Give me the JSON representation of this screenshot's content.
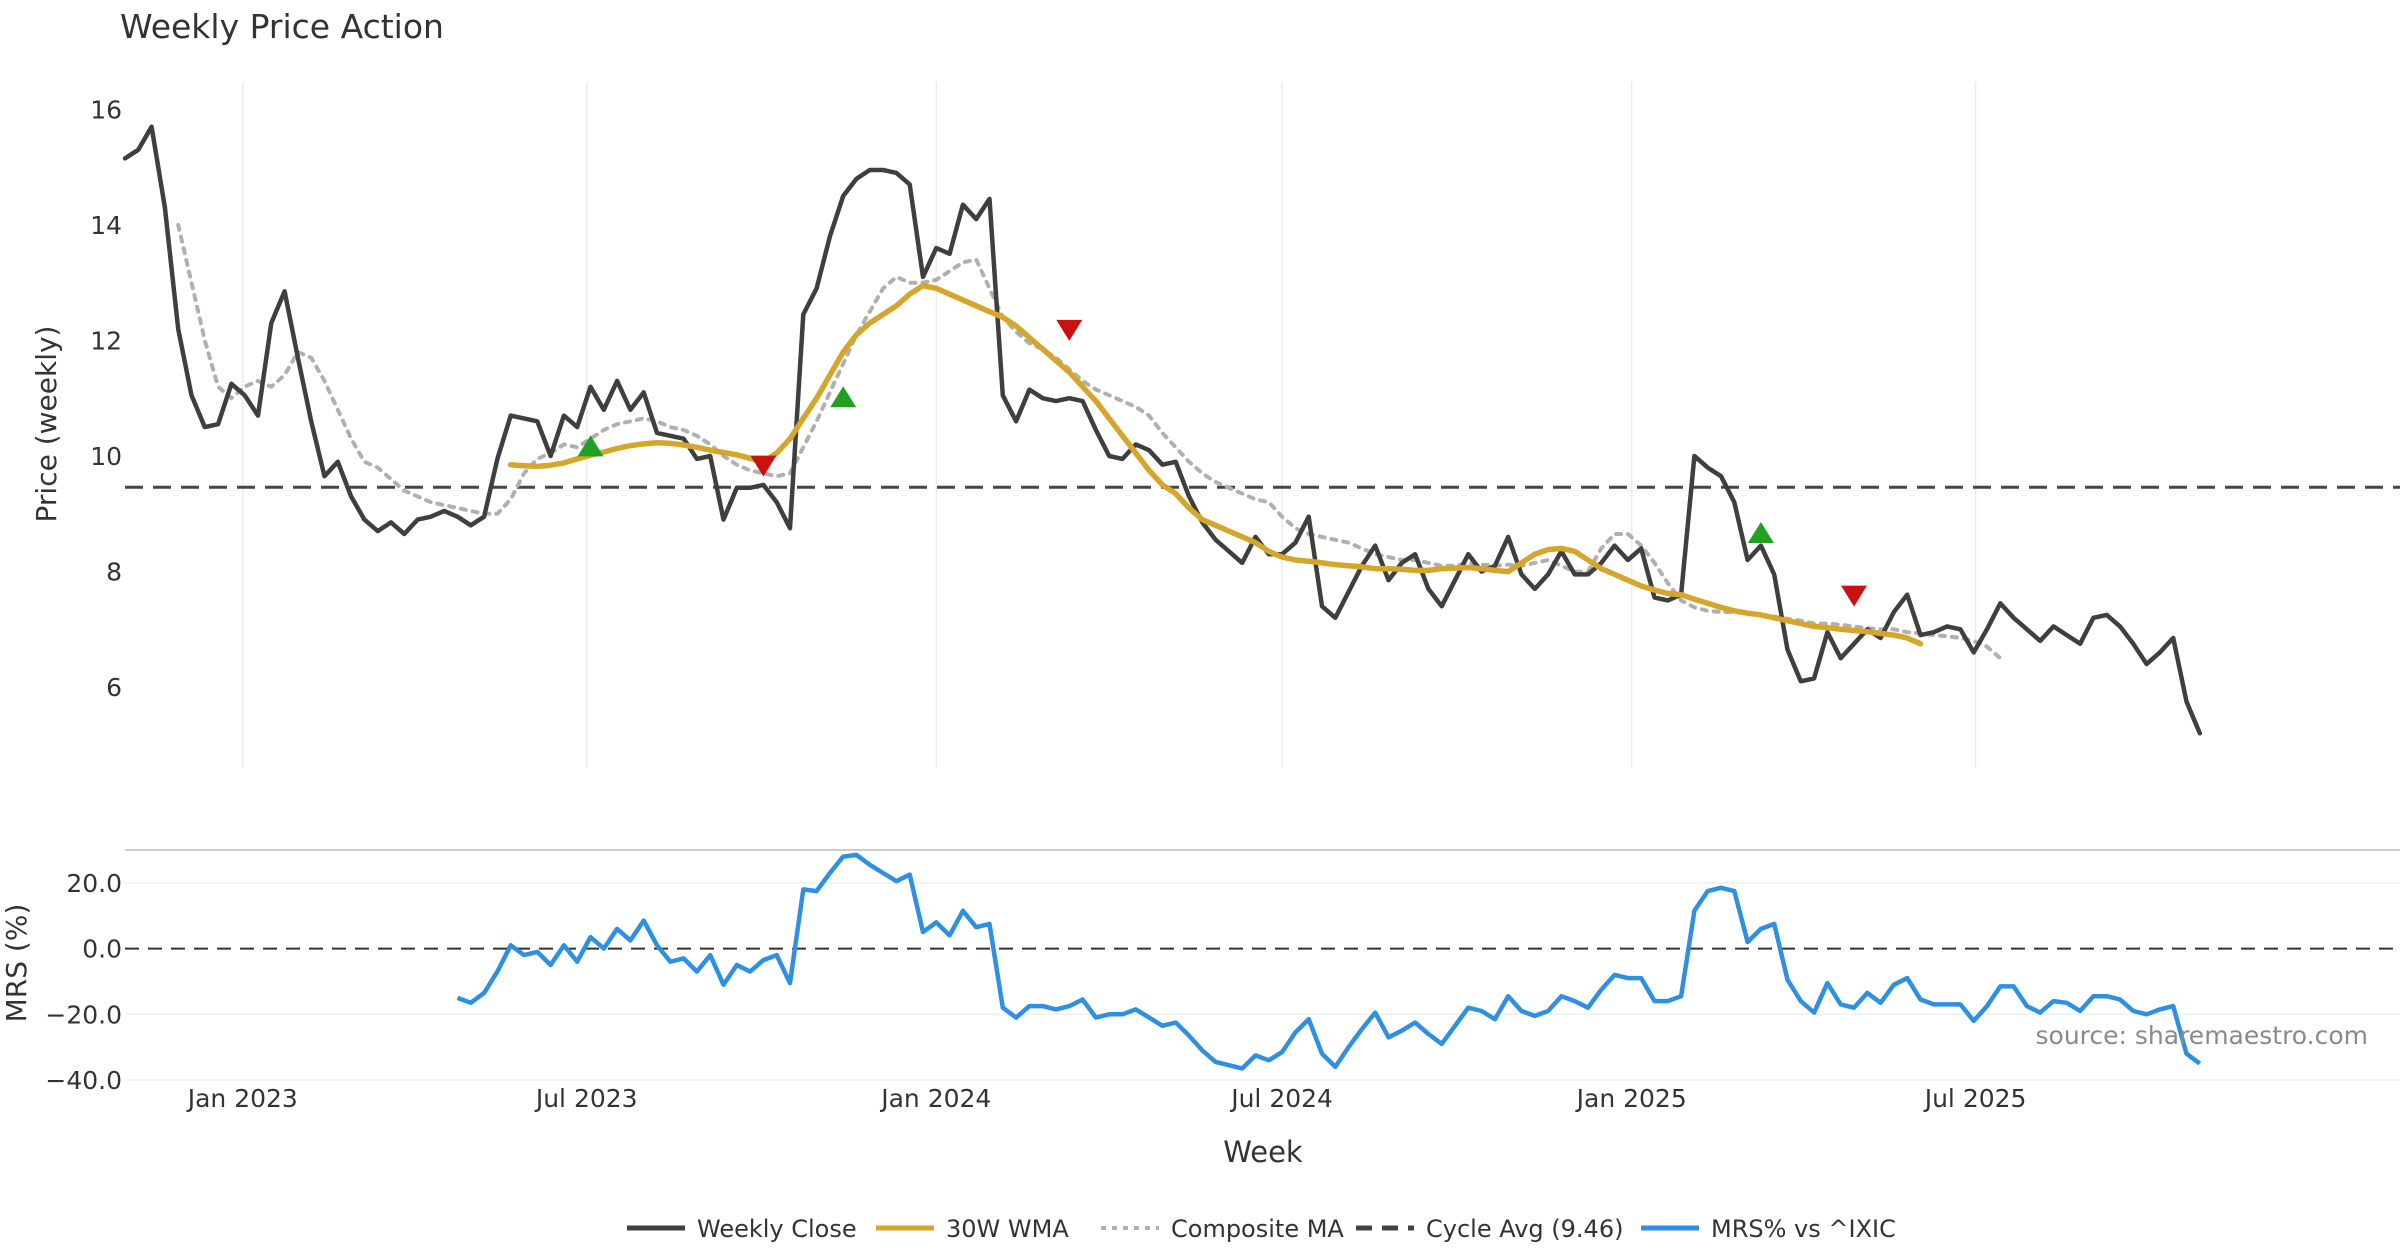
{
  "title": "Weekly Price Action",
  "source_note": "source: sharemaestro.com",
  "colors": {
    "close": "#3f3f3f",
    "wma": "#d4a72c",
    "composite": "#b0b0b0",
    "cycle": "#444444",
    "mrs": "#2f8fe0",
    "buy": "#22a022",
    "sell": "#cc1111",
    "grid": "#ececec"
  },
  "chart_data": [
    {
      "type": "line",
      "title": "Weekly Price Action",
      "xlabel": "Week",
      "ylabel": "Price (weekly)",
      "x_ticks": [
        "Jan 2023",
        "Jul 2023",
        "Jan 2024",
        "Jul 2024",
        "Jan 2025",
        "Jul 2025"
      ],
      "y_ticks": [
        6,
        8,
        10,
        12,
        14,
        16
      ],
      "ylim": [
        4.6,
        16.3
      ],
      "grid": "x",
      "cycle_avg": 9.46,
      "x_start": "2022-10-31",
      "series": [
        {
          "name": "Weekly Close",
          "style": "solid",
          "values": [
            15.15,
            15.3,
            15.7,
            14.3,
            12.2,
            11.05,
            10.5,
            10.55,
            11.25,
            11.05,
            10.7,
            12.3,
            12.85,
            11.7,
            10.6,
            9.65,
            9.9,
            9.3,
            8.9,
            8.7,
            8.85,
            8.65,
            8.9,
            8.95,
            9.05,
            8.95,
            8.8,
            8.95,
            9.95,
            10.7,
            10.65,
            10.6,
            10.0,
            10.7,
            10.5,
            11.2,
            10.8,
            11.3,
            10.8,
            11.1,
            10.4,
            10.35,
            10.3,
            9.95,
            10.0,
            8.9,
            9.45,
            9.45,
            9.5,
            9.2,
            8.75,
            12.45,
            12.9,
            13.8,
            14.5,
            14.8,
            14.95,
            14.95,
            14.9,
            14.7,
            13.1,
            13.6,
            13.5,
            14.35,
            14.1,
            14.45,
            11.05,
            10.6,
            11.15,
            11.0,
            10.95,
            11.0,
            10.95,
            10.45,
            10.0,
            9.95,
            10.2,
            10.1,
            9.85,
            9.9,
            9.3,
            8.85,
            8.55,
            8.35,
            8.15,
            8.6,
            8.3,
            8.3,
            8.5,
            8.95,
            7.4,
            7.2,
            7.65,
            8.1,
            8.45,
            7.85,
            8.15,
            8.3,
            7.7,
            7.4,
            7.85,
            8.3,
            8.0,
            8.1,
            8.6,
            7.95,
            7.7,
            7.95,
            8.35,
            7.95,
            7.95,
            8.15,
            8.45,
            8.2,
            8.4,
            7.55,
            7.5,
            7.6,
            10.0,
            9.8,
            9.65,
            9.2,
            8.2,
            8.45,
            7.95,
            6.65,
            6.1,
            6.15,
            6.95,
            6.5,
            6.75,
            7.0,
            6.85,
            7.3,
            7.6,
            6.9,
            6.95,
            7.05,
            7.0,
            6.6,
            7.0,
            7.45,
            7.2,
            7.0,
            6.8,
            7.05,
            6.9,
            6.75,
            7.2,
            7.25,
            7.05,
            6.75,
            6.4,
            6.6,
            6.85,
            5.75,
            5.2
          ]
        },
        {
          "name": "30W WMA",
          "style": "solid",
          "x_offset": 29,
          "values": [
            9.85,
            9.83,
            9.82,
            9.84,
            9.88,
            9.95,
            10.01,
            10.07,
            10.13,
            10.18,
            10.21,
            10.23,
            10.22,
            10.19,
            10.15,
            10.1,
            10.06,
            10.02,
            9.96,
            9.9,
            10.05,
            10.3,
            10.65,
            11.0,
            11.4,
            11.8,
            12.1,
            12.3,
            12.45,
            12.6,
            12.8,
            12.95,
            12.9,
            12.8,
            12.7,
            12.6,
            12.5,
            12.4,
            12.25,
            12.05,
            11.85,
            11.65,
            11.45,
            11.2,
            10.95,
            10.65,
            10.35,
            10.05,
            9.75,
            9.5,
            9.35,
            9.1,
            8.9,
            8.8,
            8.7,
            8.6,
            8.5,
            8.35,
            8.25,
            8.2,
            8.18,
            8.15,
            8.12,
            8.1,
            8.08,
            8.05,
            8.05,
            8.04,
            8.02,
            8.02,
            8.05,
            8.06,
            8.07,
            8.05,
            8.02,
            8.0,
            8.15,
            8.3,
            8.38,
            8.4,
            8.35,
            8.2,
            8.05,
            7.95,
            7.85,
            7.75,
            7.68,
            7.62,
            7.6,
            7.52,
            7.45,
            7.38,
            7.32,
            7.28,
            7.25,
            7.2,
            7.15,
            7.1,
            7.05,
            7.03,
            7.0,
            6.98,
            6.96,
            6.93,
            6.9,
            6.85,
            6.75
          ]
        },
        {
          "name": "Composite MA",
          "style": "dotted",
          "x_offset": 4,
          "values": [
            14.0,
            13.0,
            12.0,
            11.2,
            11.0,
            11.2,
            11.3,
            11.2,
            11.4,
            11.8,
            11.7,
            11.3,
            10.8,
            10.3,
            9.9,
            9.8,
            9.6,
            9.4,
            9.3,
            9.2,
            9.15,
            9.1,
            9.05,
            9.0,
            9.0,
            9.25,
            9.7,
            9.95,
            10.05,
            10.2,
            10.15,
            10.3,
            10.45,
            10.55,
            10.6,
            10.65,
            10.6,
            10.5,
            10.45,
            10.35,
            10.2,
            10.0,
            9.85,
            9.75,
            9.7,
            9.65,
            9.7,
            10.15,
            10.6,
            11.1,
            11.6,
            12.1,
            12.5,
            12.9,
            13.1,
            13.0,
            13.0,
            13.05,
            13.2,
            13.35,
            13.4,
            12.9,
            12.4,
            12.15,
            11.95,
            11.85,
            11.7,
            11.5,
            11.3,
            11.15,
            11.05,
            10.95,
            10.85,
            10.7,
            10.4,
            10.15,
            9.9,
            9.7,
            9.55,
            9.45,
            9.35,
            9.25,
            9.2,
            8.95,
            8.75,
            8.65,
            8.6,
            8.55,
            8.5,
            8.4,
            8.3,
            8.25,
            8.2,
            8.2,
            8.15,
            8.1,
            8.1,
            8.15,
            8.12,
            8.1,
            8.12,
            8.1,
            8.15,
            8.2,
            8.1,
            8.0,
            8.0,
            8.4,
            8.65,
            8.65,
            8.45,
            8.15,
            7.8,
            7.5,
            7.38,
            7.32,
            7.3,
            7.3,
            7.28,
            7.25,
            7.22,
            7.18,
            7.15,
            7.1,
            7.1,
            7.08,
            7.05,
            7.02,
            7.0,
            7.0,
            6.95,
            6.93,
            6.9,
            6.88,
            6.85,
            6.8,
            6.7,
            6.5
          ]
        }
      ],
      "buy_signals": [
        {
          "x": 35,
          "y": 10.15
        },
        {
          "x": 54,
          "y": 11.0
        },
        {
          "x": 123,
          "y": 8.65
        }
      ],
      "sell_signals": [
        {
          "x": 48,
          "y": 9.85
        },
        {
          "x": 71,
          "y": 12.2
        },
        {
          "x": 130,
          "y": 7.6
        }
      ]
    },
    {
      "type": "line",
      "xlabel": "Week",
      "ylabel": "MRS (%)",
      "y_ticks": [
        20.0,
        0.0,
        -20.0,
        -40.0
      ],
      "ylim": [
        -40,
        30
      ],
      "series": [
        {
          "name": "MRS% vs ^IXIC",
          "style": "solid",
          "x_offset": 25,
          "values": [
            -15,
            -16.5,
            -13.5,
            -7,
            1,
            -2,
            -1,
            -5,
            1,
            -4,
            3.5,
            0,
            6,
            2.5,
            8.5,
            1,
            -4,
            -3,
            -7,
            -2,
            -11,
            -5,
            -7,
            -3.5,
            -2,
            -10.5,
            18,
            17.5,
            23,
            28,
            28.5,
            25.5,
            23,
            20.5,
            22.5,
            5,
            8,
            4,
            11.5,
            6.5,
            7.5,
            -18,
            -21,
            -17.5,
            -17.5,
            -18.5,
            -17.5,
            -15.5,
            -21,
            -20,
            -20,
            -18.5,
            -21,
            -23.5,
            -22.5,
            -26.5,
            -31,
            -34.5,
            -35.5,
            -36.5,
            -32.5,
            -34,
            -31.5,
            -25.5,
            -21.5,
            -32,
            -36,
            -30,
            -24.5,
            -19.5,
            -27,
            -25,
            -22.5,
            -26,
            -29,
            -23.5,
            -18,
            -19,
            -21.5,
            -14.5,
            -19,
            -20.5,
            -19,
            -14.5,
            -16,
            -18,
            -12.5,
            -8,
            -9,
            -9,
            -16,
            -16,
            -14.5,
            11.5,
            17.5,
            18.5,
            17.5,
            2,
            6,
            7.5,
            -9.5,
            -16,
            -19.5,
            -10.5,
            -17,
            -18,
            -13.5,
            -16.5,
            -11,
            -9,
            -15.5,
            -17,
            -17,
            -17,
            -22,
            -17.5,
            -11.5,
            -11.5,
            -17.5,
            -19.5,
            -16,
            -16.5,
            -19,
            -14.5,
            -14.5,
            -15.5,
            -19,
            -20,
            -18.5,
            -17.5,
            -32,
            -35
          ]
        }
      ]
    }
  ],
  "legend": [
    {
      "label": "Weekly Close",
      "style": "solid",
      "color": "#3f3f3f"
    },
    {
      "label": "30W WMA",
      "style": "solid",
      "color": "#d4a72c"
    },
    {
      "label": "Composite MA",
      "style": "dotted",
      "color": "#b0b0b0"
    },
    {
      "label": "Cycle Avg (9.46)",
      "style": "dashed",
      "color": "#444444"
    },
    {
      "label": "MRS% vs ^IXIC",
      "style": "solid",
      "color": "#2f8fe0"
    }
  ]
}
